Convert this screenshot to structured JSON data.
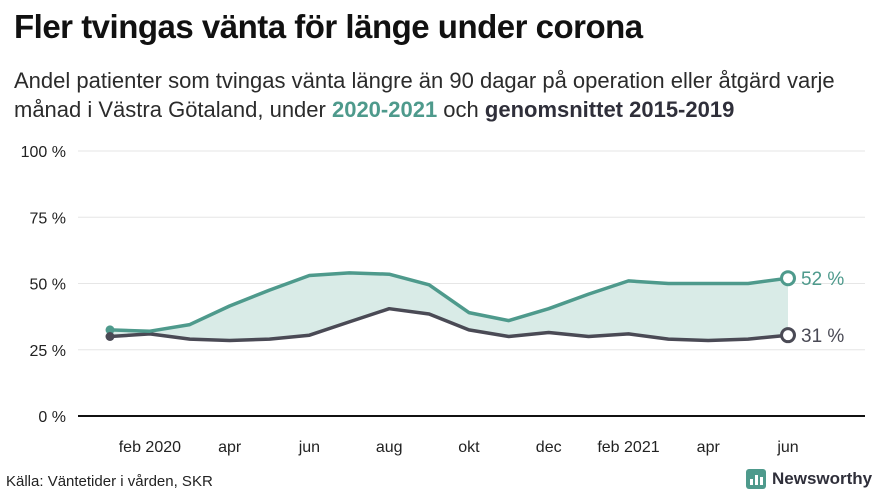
{
  "header": {
    "title": "Fler tvingas vänta för länge under corona",
    "subtitle_part1": "Andel patienter som tvingas vänta längre än 90 dagar på operation eller åtgärd varje månad i Västra Götaland, under ",
    "subtitle_highlight1": "2020-2021",
    "subtitle_part2": " och ",
    "subtitle_highlight2": "genomsnittet 2015-2019"
  },
  "footer": {
    "source": "Källa: Väntetider i vården, SKR",
    "logo_text": "Newsworthy"
  },
  "chart_data": {
    "type": "line",
    "x": [
      "2020-01",
      "2020-02",
      "2020-03",
      "2020-04",
      "2020-05",
      "2020-06",
      "2020-07",
      "2020-08",
      "2020-09",
      "2020-10",
      "2020-11",
      "2020-12",
      "2021-01",
      "2021-02",
      "2021-03",
      "2021-04",
      "2021-05",
      "2021-06"
    ],
    "x_tick_labels": [
      {
        "x": "2020-02",
        "label": "feb 2020"
      },
      {
        "x": "2020-04",
        "label": "apr"
      },
      {
        "x": "2020-06",
        "label": "jun"
      },
      {
        "x": "2020-08",
        "label": "aug"
      },
      {
        "x": "2020-10",
        "label": "okt"
      },
      {
        "x": "2020-12",
        "label": "dec"
      },
      {
        "x": "2021-02",
        "label": "feb 2021"
      },
      {
        "x": "2021-04",
        "label": "apr"
      },
      {
        "x": "2021-06",
        "label": "jun"
      }
    ],
    "y_ticks": [
      0,
      25,
      50,
      75,
      100
    ],
    "y_tick_labels": [
      "0 %",
      "25 %",
      "50 %",
      "75 %",
      "100 %"
    ],
    "ylim": [
      0,
      100
    ],
    "grid": true,
    "series": [
      {
        "key": "current",
        "color": "#4e9a8c",
        "values": [
          32.5,
          32,
          34.5,
          41.5,
          47.5,
          53,
          54,
          53.5,
          49.5,
          39,
          36,
          40.5,
          46,
          51,
          50,
          50,
          50,
          52
        ],
        "end_label": "52 %"
      },
      {
        "key": "average",
        "color": "#4a4a55",
        "values": [
          30,
          31,
          29,
          28.5,
          29,
          30.5,
          35.5,
          40.5,
          38.5,
          32.5,
          30,
          31.5,
          30,
          31,
          29,
          28.5,
          29,
          30.5
        ],
        "end_label": "31 %"
      }
    ],
    "fill_between_color": "#d9ebe7"
  }
}
